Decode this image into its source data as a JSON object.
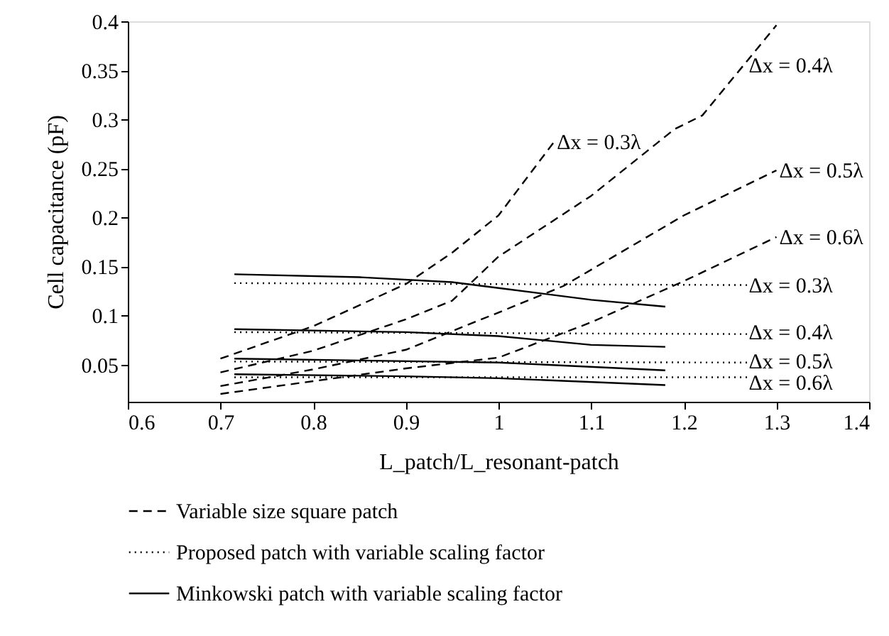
{
  "chart_data": {
    "type": "line",
    "xlabel": "L_patch/L_resonant-patch",
    "ylabel": "Cell capacitance (pF)",
    "xlim": [
      0.6,
      1.4
    ],
    "xticks": [
      0.6,
      0.7,
      0.8,
      0.9,
      1,
      1.1,
      1.2,
      1.3,
      1.4
    ],
    "ylim": [
      0.012,
      0.4
    ],
    "yticks": [
      0.05,
      0.1,
      0.15,
      0.2,
      0.25,
      0.3,
      0.35,
      0.4
    ],
    "grid": false,
    "legend": "bottom",
    "marker": "none",
    "series": [
      {
        "name": "Variable size square patch",
        "color": "#000000",
        "line_style": "dashed",
        "x": [
          0.7,
          0.8,
          0.9,
          0.95,
          1.0,
          1.06
        ],
        "values": [
          0.056,
          0.089,
          0.132,
          0.164,
          0.202,
          0.277
        ]
      },
      {
        "color": "#000000",
        "line_style": "dashed",
        "x": [
          0.7,
          0.8,
          0.9,
          0.95,
          1.0,
          1.1,
          1.19,
          1.22,
          1.3
        ],
        "values": [
          0.042,
          0.064,
          0.096,
          0.115,
          0.16,
          0.222,
          0.29,
          0.304,
          0.396
        ]
      },
      {
        "color": "#000000",
        "line_style": "dashed",
        "x": [
          0.7,
          0.8,
          0.9,
          0.95,
          1.0,
          1.07,
          1.2,
          1.3
        ],
        "values": [
          0.028,
          0.045,
          0.065,
          0.084,
          0.103,
          0.13,
          0.202,
          0.248
        ]
      },
      {
        "color": "#000000",
        "line_style": "dashed",
        "x": [
          0.7,
          0.8,
          0.9,
          1.0,
          1.1,
          1.2,
          1.3
        ],
        "values": [
          0.02,
          0.033,
          0.046,
          0.057,
          0.093,
          0.135,
          0.18
        ]
      },
      {
        "name": "Proposed patch with variable scaling factor",
        "color": "#000000",
        "line_style": "dotted",
        "x": [
          0.715,
          1.27
        ],
        "values": [
          0.133,
          0.131
        ]
      },
      {
        "color": "#000000",
        "line_style": "dotted",
        "x": [
          0.715,
          1.27
        ],
        "values": [
          0.083,
          0.081
        ]
      },
      {
        "color": "#000000",
        "line_style": "dotted",
        "x": [
          0.715,
          1.27
        ],
        "values": [
          0.053,
          0.052
        ]
      },
      {
        "color": "#000000",
        "line_style": "dotted",
        "x": [
          0.715,
          1.27
        ],
        "values": [
          0.037,
          0.037
        ]
      },
      {
        "name": "Minkowski patch with variable scaling factor",
        "color": "#000000",
        "line_style": "solid",
        "x": [
          0.715,
          0.85,
          0.95,
          1.0,
          1.1,
          1.18
        ],
        "values": [
          0.142,
          0.139,
          0.134,
          0.128,
          0.116,
          0.109
        ]
      },
      {
        "color": "#000000",
        "line_style": "solid",
        "x": [
          0.715,
          0.9,
          1.0,
          1.1,
          1.18
        ],
        "values": [
          0.086,
          0.083,
          0.079,
          0.07,
          0.068
        ]
      },
      {
        "color": "#000000",
        "line_style": "solid",
        "x": [
          0.715,
          1.0,
          1.18
        ],
        "values": [
          0.056,
          0.052,
          0.044
        ]
      },
      {
        "color": "#000000",
        "line_style": "solid",
        "x": [
          0.715,
          0.9,
          1.0,
          1.18
        ],
        "values": [
          0.04,
          0.038,
          0.036,
          0.029
        ]
      }
    ],
    "annotations": [
      {
        "text": "Δx = 0.3λ",
        "x": 1.06,
        "y": 0.277
      },
      {
        "text": "Δx = 0.4λ",
        "x": 1.267,
        "y": 0.355
      },
      {
        "text": "Δx = 0.5λ",
        "x": 1.3,
        "y": 0.248
      },
      {
        "text": "Δx = 0.6λ",
        "x": 1.3,
        "y": 0.18
      },
      {
        "text": "Δx = 0.3λ",
        "x": 1.267,
        "y": 0.131
      },
      {
        "text": "Δx = 0.4λ",
        "x": 1.267,
        "y": 0.083
      },
      {
        "text": "Δx = 0.5λ",
        "x": 1.267,
        "y": 0.053
      },
      {
        "text": "Δx = 0.6λ",
        "x": 1.267,
        "y": 0.0315
      }
    ]
  }
}
